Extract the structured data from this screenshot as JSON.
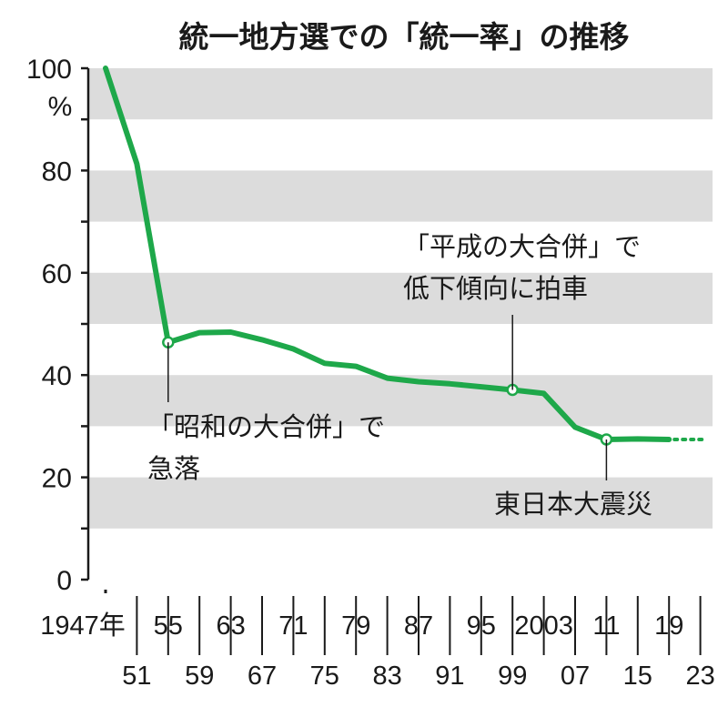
{
  "chart_data": {
    "type": "line",
    "title": "統一地方選での「統一率」の推移",
    "y_unit": "%",
    "ylim": [
      0,
      100
    ],
    "y_ticks": [
      0,
      20,
      40,
      60,
      80,
      100
    ],
    "grid": "alternating horizontal bands every 10",
    "x_tick_labels_top": [
      "1947年",
      "55",
      "63",
      "71",
      "79",
      "87",
      "95",
      "2003",
      "11",
      "19"
    ],
    "x_tick_labels_bottom": [
      "51",
      "59",
      "67",
      "75",
      "83",
      "91",
      "99",
      "07",
      "15",
      "23"
    ],
    "series": [
      {
        "x": [
          1947,
          1951,
          1955,
          1959,
          1963,
          1967,
          1971,
          1975,
          1979,
          1983,
          1987,
          1991,
          1995,
          1999,
          2003,
          2007,
          2011,
          2015,
          2019
        ],
        "values": [
          100,
          81.3,
          46.4,
          48.3,
          48.4,
          46.9,
          45.1,
          42.3,
          41.7,
          39.4,
          38.7,
          38.3,
          37.7,
          37.1,
          36.4,
          29.8,
          27.4,
          27.5,
          27.4
        ],
        "projection_to": 2023,
        "color": "#1ea84a"
      }
    ],
    "annotations": [
      {
        "lines": [
          "「昭和の大合併」で",
          "急落"
        ],
        "x": 1955
      },
      {
        "lines": [
          "「平成の大合併」で",
          "低下傾向に拍車"
        ],
        "x": 1999
      },
      {
        "lines": [
          "東日本大震災"
        ],
        "x": 2011
      }
    ]
  }
}
